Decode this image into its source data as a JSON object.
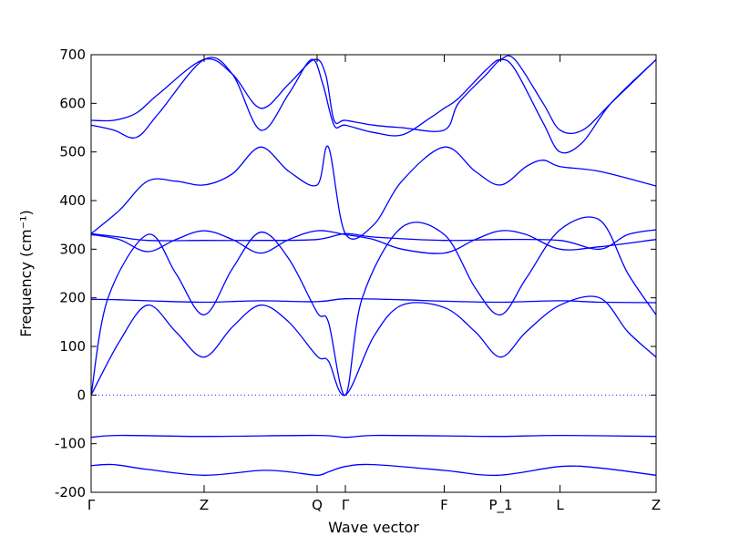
{
  "chart_data": {
    "type": "line",
    "xlabel": "Wave vector",
    "ylabel": "Frequency (cm⁻¹)",
    "ylim": [
      -200,
      700
    ],
    "yticks": [
      -200,
      -100,
      0,
      100,
      200,
      300,
      400,
      500,
      600,
      700
    ],
    "xlim": [
      0,
      1
    ],
    "xticks": [
      {
        "pos": 0.0,
        "label": "Γ"
      },
      {
        "pos": 0.2,
        "label": "Z"
      },
      {
        "pos": 0.4,
        "label": "Q"
      },
      {
        "pos": 0.45,
        "label": "Γ"
      },
      {
        "pos": 0.625,
        "label": "F"
      },
      {
        "pos": 0.725,
        "label": "P_1"
      },
      {
        "pos": 0.83,
        "label": "L"
      },
      {
        "pos": 1.0,
        "label": "Z"
      }
    ],
    "zero_line": {
      "y": 0,
      "style": "dotted"
    },
    "line_color": "#0000ff",
    "series": [
      {
        "values": [
          [
            0,
            -145
          ],
          [
            0.04,
            -143
          ],
          [
            0.1,
            -153
          ],
          [
            0.2,
            -165
          ],
          [
            0.3,
            -155
          ],
          [
            0.35,
            -158
          ],
          [
            0.4,
            -165
          ],
          [
            0.42,
            -158
          ],
          [
            0.45,
            -147
          ],
          [
            0.5,
            -143
          ],
          [
            0.625,
            -155
          ],
          [
            0.72,
            -165
          ],
          [
            0.83,
            -147
          ],
          [
            0.9,
            -150
          ],
          [
            1.0,
            -165
          ]
        ]
      },
      {
        "values": [
          [
            0,
            -87
          ],
          [
            0.05,
            -83
          ],
          [
            0.2,
            -85
          ],
          [
            0.4,
            -83
          ],
          [
            0.45,
            -87
          ],
          [
            0.5,
            -83
          ],
          [
            0.625,
            -84
          ],
          [
            0.725,
            -85
          ],
          [
            0.83,
            -83
          ],
          [
            1.0,
            -85
          ]
        ]
      },
      {
        "values": [
          [
            0,
            0
          ],
          [
            0.05,
            110
          ],
          [
            0.1,
            185
          ],
          [
            0.15,
            130
          ],
          [
            0.2,
            78
          ],
          [
            0.25,
            140
          ],
          [
            0.3,
            185
          ],
          [
            0.35,
            150
          ],
          [
            0.4,
            80
          ],
          [
            0.42,
            70
          ],
          [
            0.45,
            0
          ],
          [
            0.5,
            120
          ],
          [
            0.55,
            185
          ],
          [
            0.625,
            180
          ],
          [
            0.68,
            130
          ],
          [
            0.725,
            78
          ],
          [
            0.77,
            130
          ],
          [
            0.83,
            185
          ],
          [
            0.9,
            200
          ],
          [
            0.95,
            130
          ],
          [
            1.0,
            78
          ]
        ]
      },
      {
        "values": [
          [
            0,
            0
          ],
          [
            0.03,
            200
          ],
          [
            0.1,
            330
          ],
          [
            0.15,
            250
          ],
          [
            0.2,
            165
          ],
          [
            0.25,
            260
          ],
          [
            0.3,
            335
          ],
          [
            0.35,
            280
          ],
          [
            0.4,
            170
          ],
          [
            0.42,
            150
          ],
          [
            0.45,
            0
          ],
          [
            0.48,
            200
          ],
          [
            0.55,
            345
          ],
          [
            0.625,
            330
          ],
          [
            0.68,
            220
          ],
          [
            0.725,
            165
          ],
          [
            0.77,
            240
          ],
          [
            0.83,
            340
          ],
          [
            0.9,
            360
          ],
          [
            0.95,
            250
          ],
          [
            1.0,
            165
          ]
        ]
      },
      {
        "values": [
          [
            0,
            197
          ],
          [
            0.05,
            196
          ],
          [
            0.1,
            194
          ],
          [
            0.2,
            191
          ],
          [
            0.3,
            194
          ],
          [
            0.4,
            192
          ],
          [
            0.45,
            198
          ],
          [
            0.55,
            196
          ],
          [
            0.625,
            193
          ],
          [
            0.725,
            191
          ],
          [
            0.83,
            194
          ],
          [
            0.9,
            191
          ],
          [
            1.0,
            190
          ]
        ]
      },
      {
        "values": [
          [
            0,
            330
          ],
          [
            0.05,
            320
          ],
          [
            0.1,
            295
          ],
          [
            0.15,
            320
          ],
          [
            0.2,
            338
          ],
          [
            0.25,
            320
          ],
          [
            0.3,
            292
          ],
          [
            0.35,
            320
          ],
          [
            0.4,
            338
          ],
          [
            0.45,
            330
          ],
          [
            0.5,
            320
          ],
          [
            0.55,
            300
          ],
          [
            0.625,
            292
          ],
          [
            0.68,
            320
          ],
          [
            0.725,
            338
          ],
          [
            0.77,
            330
          ],
          [
            0.83,
            300
          ],
          [
            0.9,
            305
          ],
          [
            1.0,
            320
          ]
        ]
      },
      {
        "values": [
          [
            0,
            332
          ],
          [
            0.05,
            325
          ],
          [
            0.1,
            318
          ],
          [
            0.2,
            318
          ],
          [
            0.3,
            318
          ],
          [
            0.4,
            320
          ],
          [
            0.45,
            332
          ],
          [
            0.5,
            325
          ],
          [
            0.625,
            318
          ],
          [
            0.725,
            320
          ],
          [
            0.83,
            318
          ],
          [
            0.9,
            300
          ],
          [
            0.95,
            330
          ],
          [
            1.0,
            340
          ]
        ]
      },
      {
        "values": [
          [
            0,
            332
          ],
          [
            0.05,
            380
          ],
          [
            0.1,
            440
          ],
          [
            0.15,
            440
          ],
          [
            0.2,
            432
          ],
          [
            0.25,
            455
          ],
          [
            0.3,
            510
          ],
          [
            0.35,
            460
          ],
          [
            0.4,
            432
          ],
          [
            0.42,
            510
          ],
          [
            0.45,
            332
          ],
          [
            0.5,
            350
          ],
          [
            0.55,
            440
          ],
          [
            0.625,
            510
          ],
          [
            0.68,
            460
          ],
          [
            0.725,
            432
          ],
          [
            0.77,
            470
          ],
          [
            0.8,
            483
          ],
          [
            0.83,
            470
          ],
          [
            0.9,
            460
          ],
          [
            1.0,
            430
          ]
        ]
      },
      {
        "values": [
          [
            0,
            555
          ],
          [
            0.04,
            545
          ],
          [
            0.08,
            530
          ],
          [
            0.12,
            580
          ],
          [
            0.2,
            690
          ],
          [
            0.25,
            660
          ],
          [
            0.3,
            545
          ],
          [
            0.35,
            620
          ],
          [
            0.39,
            690
          ],
          [
            0.41,
            640
          ],
          [
            0.43,
            555
          ],
          [
            0.45,
            555
          ],
          [
            0.5,
            540
          ],
          [
            0.55,
            535
          ],
          [
            0.6,
            570
          ],
          [
            0.625,
            590
          ],
          [
            0.65,
            610
          ],
          [
            0.7,
            670
          ],
          [
            0.725,
            690
          ],
          [
            0.75,
            670
          ],
          [
            0.8,
            560
          ],
          [
            0.83,
            500
          ],
          [
            0.87,
            520
          ],
          [
            0.92,
            600
          ],
          [
            1.0,
            690
          ]
        ]
      },
      {
        "values": [
          [
            0,
            565
          ],
          [
            0.04,
            565
          ],
          [
            0.08,
            580
          ],
          [
            0.12,
            620
          ],
          [
            0.2,
            690
          ],
          [
            0.25,
            660
          ],
          [
            0.3,
            590
          ],
          [
            0.35,
            640
          ],
          [
            0.395,
            690
          ],
          [
            0.415,
            660
          ],
          [
            0.43,
            565
          ],
          [
            0.45,
            565
          ],
          [
            0.5,
            555
          ],
          [
            0.55,
            550
          ],
          [
            0.625,
            545
          ],
          [
            0.65,
            600
          ],
          [
            0.7,
            660
          ],
          [
            0.725,
            690
          ],
          [
            0.75,
            690
          ],
          [
            0.8,
            600
          ],
          [
            0.83,
            545
          ],
          [
            0.87,
            545
          ],
          [
            0.92,
            600
          ],
          [
            1.0,
            690
          ]
        ]
      }
    ]
  }
}
